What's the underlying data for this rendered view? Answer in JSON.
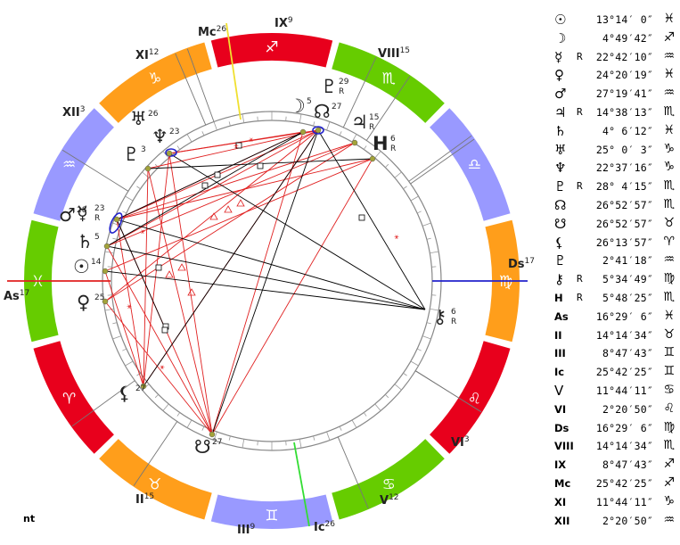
{
  "sign_glyphs": [
    "♐",
    "♏",
    "♎",
    "♍",
    "♌",
    "♋",
    "♊",
    "♉",
    "♈",
    "♓",
    "♒",
    "♑"
  ],
  "sign_colors": [
    "#e8001c",
    "#66cc00",
    "#9999ff",
    "#ff9e1b",
    "#e8001c",
    "#66cc00",
    "#9999ff",
    "#ff9e1b",
    "#e8001c",
    "#66cc00",
    "#9999ff",
    "#ff9e1b"
  ],
  "house_labels": [
    {
      "name": "house-label-as",
      "roman": "As",
      "deg": "17"
    },
    {
      "name": "house-label-2",
      "roman": "II",
      "deg": "15"
    },
    {
      "name": "house-label-3",
      "roman": "III",
      "deg": "9"
    },
    {
      "name": "house-label-ic",
      "roman": "Ic",
      "deg": "26"
    },
    {
      "name": "house-label-5",
      "roman": "V",
      "deg": "12"
    },
    {
      "name": "house-label-6",
      "roman": "VI",
      "deg": "3"
    },
    {
      "name": "house-label-ds",
      "roman": "Ds",
      "deg": "17"
    },
    {
      "name": "house-label-8",
      "roman": "VIII",
      "deg": "15"
    },
    {
      "name": "house-label-9",
      "roman": "IX",
      "deg": "9"
    },
    {
      "name": "house-label-mc",
      "roman": "Mc",
      "deg": "26"
    },
    {
      "name": "house-label-11",
      "roman": "XI",
      "deg": "12"
    },
    {
      "name": "house-label-12",
      "roman": "XII",
      "deg": "3"
    }
  ],
  "chart_planets": [
    {
      "name": "sun",
      "glyph": "☉",
      "deg": "14",
      "retro": ""
    },
    {
      "name": "moon",
      "glyph": "☽",
      "deg": "5",
      "retro": ""
    },
    {
      "name": "mercury",
      "glyph": "☿",
      "deg": "23",
      "retro": "R"
    },
    {
      "name": "venus",
      "glyph": "♀",
      "deg": "25",
      "retro": ""
    },
    {
      "name": "mars",
      "glyph": "♂",
      "deg": "28",
      "retro": ""
    },
    {
      "name": "jupiter",
      "glyph": "♃",
      "deg": "15",
      "retro": "R"
    },
    {
      "name": "saturn",
      "glyph": "♄",
      "deg": "5",
      "retro": ""
    },
    {
      "name": "uranus",
      "glyph": "♅",
      "deg": "26",
      "retro": ""
    },
    {
      "name": "neptune",
      "glyph": "♆",
      "deg": "23",
      "retro": ""
    },
    {
      "name": "pluto",
      "glyph": "♇",
      "deg": "29",
      "retro": "R"
    },
    {
      "name": "north-node",
      "glyph": "☊",
      "deg": "27",
      "retro": ""
    },
    {
      "name": "south-node",
      "glyph": "☋",
      "deg": "27",
      "retro": ""
    },
    {
      "name": "lilith",
      "glyph": "⚸",
      "deg": "27",
      "retro": ""
    },
    {
      "name": "vesta",
      "glyph": "♇",
      "deg": "3",
      "retro": ""
    },
    {
      "name": "chiron",
      "glyph": "⚷",
      "deg": "6",
      "retro": "R"
    },
    {
      "name": "uranus-h",
      "glyph": "H",
      "deg": "6",
      "retro": "R"
    }
  ],
  "positions": [
    {
      "name": "sun",
      "glyph": "☉",
      "r": "",
      "deg": "13°14′ 0″",
      "sign": "♓"
    },
    {
      "name": "moon",
      "glyph": "☽",
      "r": "",
      "deg": "4°49′42″",
      "sign": "♐"
    },
    {
      "name": "mercury",
      "glyph": "☿",
      "r": "R",
      "deg": "22°42′10″",
      "sign": "♒"
    },
    {
      "name": "venus",
      "glyph": "♀",
      "r": "",
      "deg": "24°20′19″",
      "sign": "♓"
    },
    {
      "name": "mars",
      "glyph": "♂",
      "r": "",
      "deg": "27°19′41″",
      "sign": "♒"
    },
    {
      "name": "jupiter",
      "glyph": "♃",
      "r": "R",
      "deg": "14°38′13″",
      "sign": "♏"
    },
    {
      "name": "saturn",
      "glyph": "♄",
      "r": "",
      "deg": "4° 6′12″",
      "sign": "♓"
    },
    {
      "name": "uranus",
      "glyph": "♅",
      "r": "",
      "deg": "25° 0′ 3″",
      "sign": "♑"
    },
    {
      "name": "neptune",
      "glyph": "♆",
      "r": "",
      "deg": "22°37′16″",
      "sign": "♑"
    },
    {
      "name": "pluto",
      "glyph": "♇",
      "r": "R",
      "deg": "28° 4′15″",
      "sign": "♏"
    },
    {
      "name": "north-node",
      "glyph": "☊",
      "r": "",
      "deg": "26°52′57″",
      "sign": "♏"
    },
    {
      "name": "south-node",
      "glyph": "☋",
      "r": "",
      "deg": "26°52′57″",
      "sign": "♉"
    },
    {
      "name": "lilith",
      "glyph": "⚸",
      "r": "",
      "deg": "26°13′57″",
      "sign": "♈"
    },
    {
      "name": "vesta",
      "glyph": "♇",
      "r": "",
      "deg": "2°41′18″",
      "sign": "♒"
    },
    {
      "name": "chiron",
      "glyph": "⚷",
      "r": "R",
      "deg": "5°34′49″",
      "sign": "♍"
    },
    {
      "name": "uranus-h",
      "glyph": "H",
      "r": "R",
      "deg": "5°48′25″",
      "sign": "♏"
    },
    {
      "name": "ascendant",
      "glyph": "As",
      "r": "",
      "deg": "16°29′ 6″",
      "sign": "♓"
    },
    {
      "name": "house-2",
      "glyph": "II",
      "r": "",
      "deg": "14°14′34″",
      "sign": "♉"
    },
    {
      "name": "house-3",
      "glyph": "III",
      "r": "",
      "deg": "8°47′43″",
      "sign": "♊"
    },
    {
      "name": "imum-coeli",
      "glyph": "Ic",
      "r": "",
      "deg": "25°42′25″",
      "sign": "♊"
    },
    {
      "name": "house-5",
      "glyph": "V",
      "r": "",
      "deg": "11°44′11″",
      "sign": "♋"
    },
    {
      "name": "house-6",
      "glyph": "VI",
      "r": "",
      "deg": "2°20′50″",
      "sign": "♌"
    },
    {
      "name": "descendant",
      "glyph": "Ds",
      "r": "",
      "deg": "16°29′ 6″",
      "sign": "♍"
    },
    {
      "name": "house-8",
      "glyph": "VIII",
      "r": "",
      "deg": "14°14′34″",
      "sign": "♏"
    },
    {
      "name": "house-9",
      "glyph": "IX",
      "r": "",
      "deg": "8°47′43″",
      "sign": "♐"
    },
    {
      "name": "midheaven",
      "glyph": "Mc",
      "r": "",
      "deg": "25°42′25″",
      "sign": "♐"
    },
    {
      "name": "house-11",
      "glyph": "XI",
      "r": "",
      "deg": "11°44′11″",
      "sign": "♑"
    },
    {
      "name": "house-12",
      "glyph": "XII",
      "r": "",
      "deg": "2°20′50″",
      "sign": "♒"
    }
  ],
  "footer_text": "nt"
}
